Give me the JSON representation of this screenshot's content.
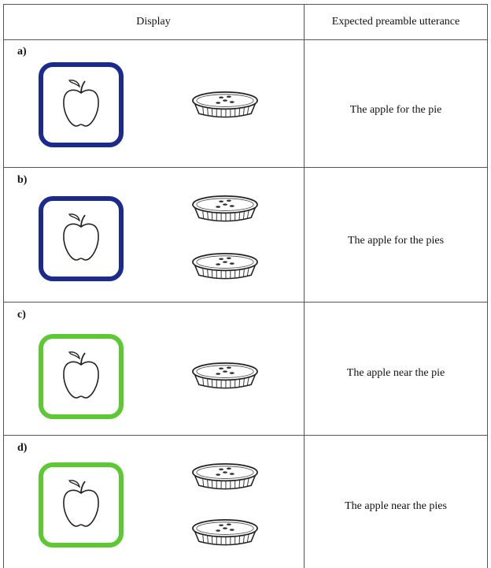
{
  "table": {
    "header": [
      "Display",
      "Expected preamble utterance"
    ],
    "rows": [
      [
        "a)",
        "The apple for the pie"
      ],
      [
        "b)",
        "The apple for the pies"
      ],
      [
        "c)",
        "The apple near the pie"
      ],
      [
        "d)",
        "The apple near the pies"
      ]
    ]
  }
}
